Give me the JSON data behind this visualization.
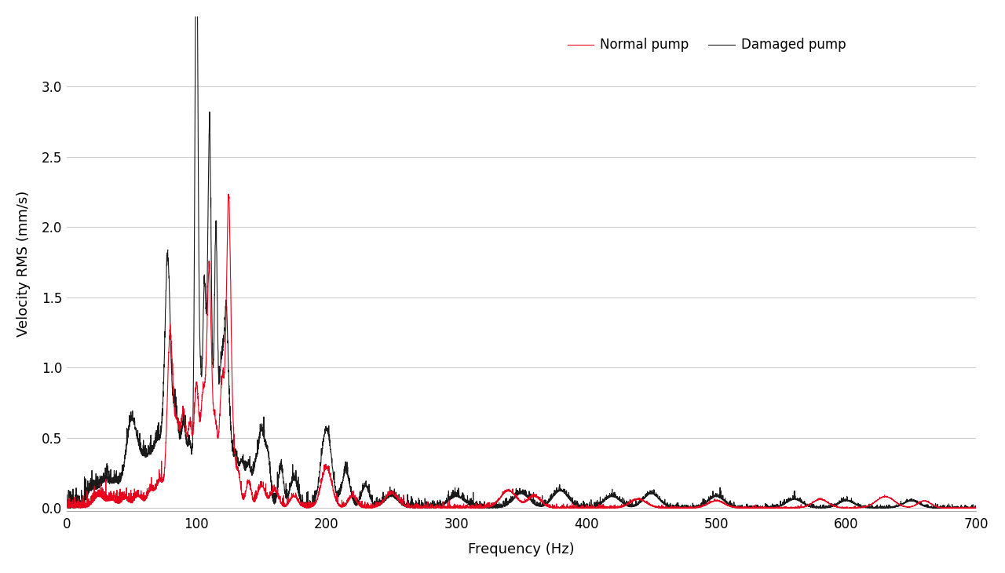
{
  "xlabel": "Frequency (Hz)",
  "ylabel": "Velocity RMS (mm/s)",
  "xlim": [
    0,
    700
  ],
  "ylim": [
    -0.02,
    3.5
  ],
  "yticks": [
    0.0,
    0.5,
    1.0,
    1.5,
    2.0,
    2.5,
    3.0
  ],
  "xticks": [
    0,
    100,
    200,
    300,
    400,
    500,
    600,
    700
  ],
  "normal_color": "#E8001C",
  "damaged_color": "#1a1a1a",
  "legend_normal": "Normal pump",
  "legend_damaged": "Damaged pump",
  "background_color": "#ffffff",
  "grid_color": "#cccccc",
  "line_width": 0.8,
  "label_fontsize": 13,
  "tick_fontsize": 12,
  "legend_fontsize": 12
}
